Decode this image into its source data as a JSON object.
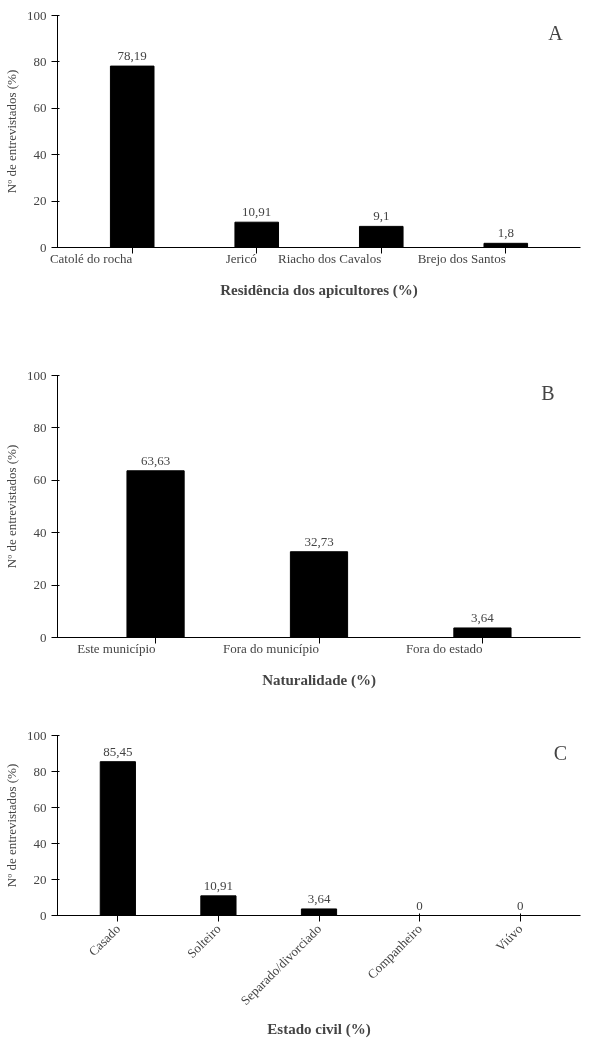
{
  "chart_data": [
    {
      "type": "bar",
      "title": "A",
      "categories": [
        "Catolé do rocha",
        "Jericó",
        "Riacho dos Cavalos",
        "Brejo dos Santos"
      ],
      "values": [
        78.19,
        10.91,
        9.1,
        1.8
      ],
      "value_labels": [
        "78,19",
        "10,91",
        "9,1",
        "1,8"
      ],
      "color": "#000000",
      "ylim": [
        0,
        100
      ],
      "yticks": [
        0,
        20,
        40,
        60,
        80,
        100
      ],
      "ylabel": "Nº de entrevistados (%)",
      "xlabel": "Residência dos apicultores (%)",
      "grid": false
    },
    {
      "type": "bar",
      "title": "B",
      "categories": [
        "Este município",
        "Fora do município",
        "Fora do estado"
      ],
      "values": [
        63.63,
        32.73,
        3.64
      ],
      "value_labels": [
        "63,63",
        "32,73",
        "3,64"
      ],
      "color": "#000000",
      "ylim": [
        0,
        100
      ],
      "yticks": [
        0,
        20,
        40,
        60,
        80,
        100
      ],
      "ylabel": "Nº de entrevistados (%)",
      "xlabel": "Naturalidade (%)",
      "grid": false
    },
    {
      "type": "bar",
      "title": "C",
      "categories": [
        "Casado",
        "Solteiro",
        "Separado/divorciado",
        "Companheiro",
        "Viúvo"
      ],
      "values": [
        85.45,
        10.91,
        3.64,
        0,
        0
      ],
      "value_labels": [
        "85,45",
        "10,91",
        "3,64",
        "0",
        "0"
      ],
      "color": "#000000",
      "ylim": [
        0,
        100
      ],
      "yticks": [
        0,
        20,
        40,
        60,
        80,
        100
      ],
      "ylabel": "Nº de entrevistados (%)",
      "xlabel": "Estado civil (%)",
      "grid": false
    }
  ]
}
